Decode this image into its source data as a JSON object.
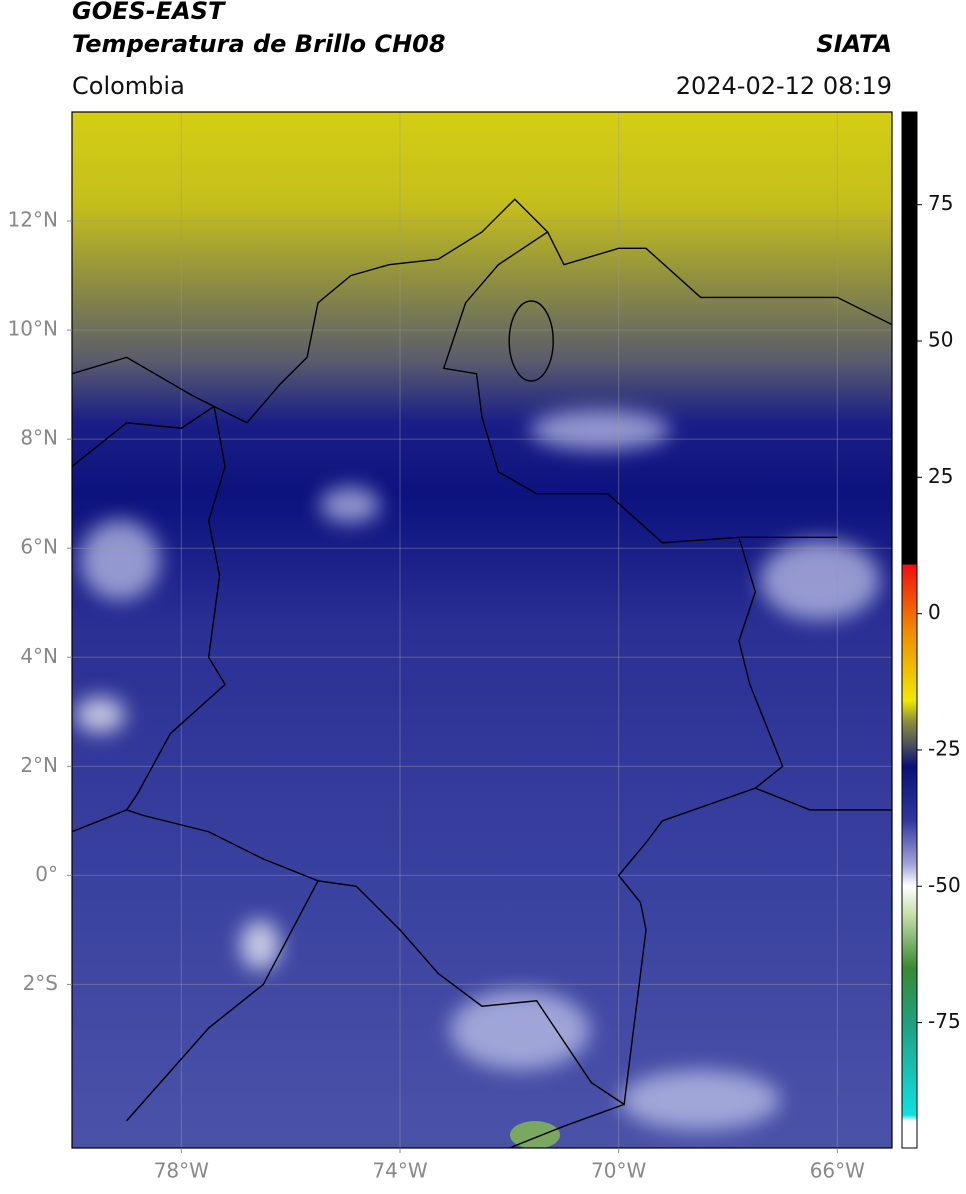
{
  "header": {
    "title_line1": "GOES-EAST",
    "title_line2": "Temperatura de Brillo CH08",
    "source": "SIATA",
    "region": "Colombia",
    "timestamp": "2024-02-12 08:19"
  },
  "map": {
    "xlim": [
      -80,
      -65
    ],
    "ylim": [
      -5,
      14
    ],
    "xticks": [
      {
        "value": -78,
        "label": "78°W"
      },
      {
        "value": -74,
        "label": "74°W"
      },
      {
        "value": -70,
        "label": "70°W"
      },
      {
        "value": -66,
        "label": "66°W"
      }
    ],
    "yticks": [
      {
        "value": 12,
        "label": "12°N"
      },
      {
        "value": 10,
        "label": "10°N"
      },
      {
        "value": 8,
        "label": "8°N"
      },
      {
        "value": 6,
        "label": "6°N"
      },
      {
        "value": 4,
        "label": "4°N"
      },
      {
        "value": 2,
        "label": "2°N"
      },
      {
        "value": 0,
        "label": "0°"
      },
      {
        "value": -2,
        "label": "2°S"
      }
    ],
    "grid": true
  },
  "colorbar": {
    "clim": [
      -98,
      92
    ],
    "ticks": [
      75,
      50,
      25,
      0,
      -25,
      -50,
      -75
    ]
  }
}
